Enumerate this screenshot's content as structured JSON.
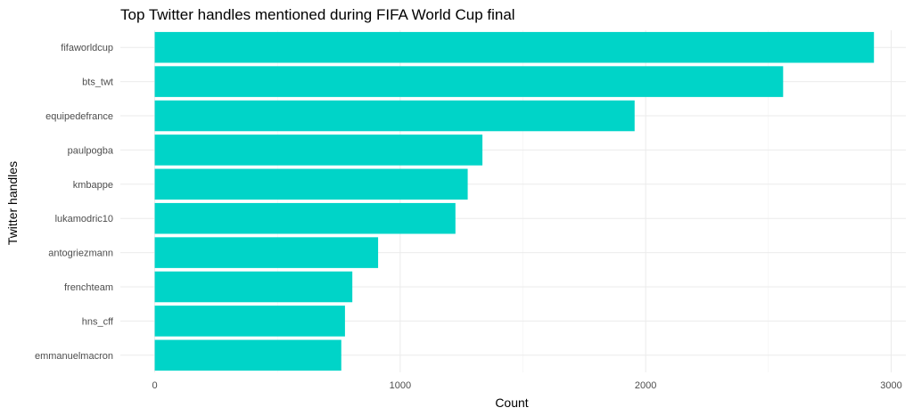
{
  "chart_data": {
    "type": "bar",
    "orientation": "horizontal",
    "title": "Top Twitter handles mentioned during FIFA World Cup final",
    "xlabel": "Count",
    "ylabel": "Twitter handles",
    "categories": [
      "fifaworldcup",
      "bts_twt",
      "equipedefrance",
      "paulpogba",
      "kmbappe",
      "lukamodric10",
      "antogriezmann",
      "frenchteam",
      "hns_cff",
      "emmanuelmacron"
    ],
    "values": [
      2930,
      2560,
      1955,
      1335,
      1275,
      1225,
      910,
      805,
      775,
      760
    ],
    "xlim": [
      -140,
      3060
    ],
    "xticks": [
      0,
      1000,
      2000,
      3000
    ],
    "xtick_labels": [
      "0",
      "1000",
      "2000",
      "3000"
    ],
    "grid": true,
    "legend": "none",
    "bar_color": "#00d4c8"
  }
}
